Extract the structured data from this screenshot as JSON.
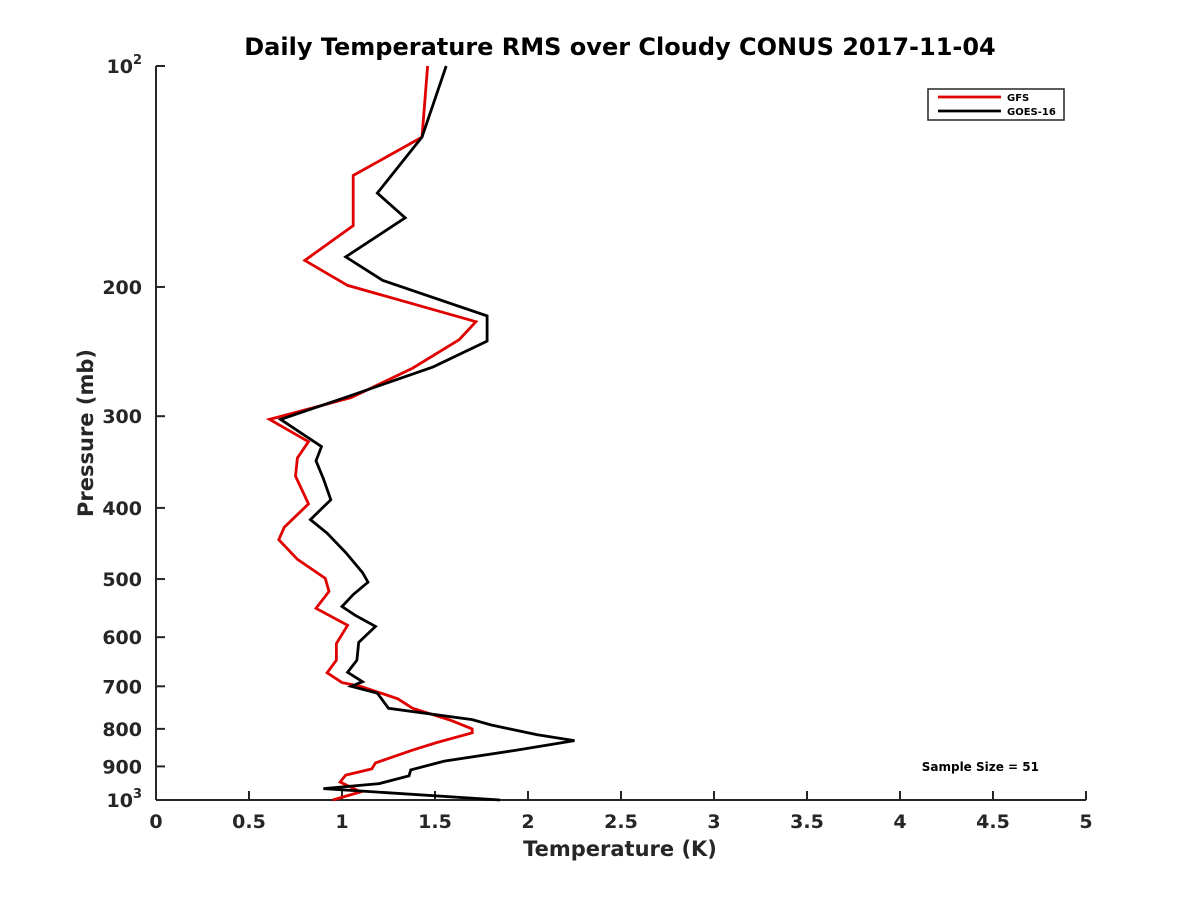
{
  "chart_data": {
    "type": "line",
    "title": "Daily Temperature RMS over Cloudy CONUS 2017-11-04",
    "xlabel": "Temperature (K)",
    "ylabel": "Pressure (mb)",
    "xlim": [
      0,
      5
    ],
    "ylim": [
      100,
      1000
    ],
    "y_scale": "log",
    "y_reversed": true,
    "grid": false,
    "legend_position": "top-right",
    "x_ticks": [
      "0",
      "0.5",
      "1",
      "1.5",
      "2",
      "2.5",
      "3",
      "3.5",
      "4",
      "4.5",
      "5"
    ],
    "x_tick_values": [
      0,
      0.5,
      1,
      1.5,
      2,
      2.5,
      3,
      3.5,
      4,
      4.5,
      5
    ],
    "y_ticks": [
      {
        "value": 100,
        "base": "10",
        "exp": "2",
        "label": ""
      },
      {
        "value": 200,
        "label": "200"
      },
      {
        "value": 300,
        "label": "300"
      },
      {
        "value": 400,
        "label": "400"
      },
      {
        "value": 500,
        "label": "500"
      },
      {
        "value": 600,
        "label": "600"
      },
      {
        "value": 700,
        "label": "700"
      },
      {
        "value": 800,
        "label": "800"
      },
      {
        "value": 900,
        "label": "900"
      },
      {
        "value": 1000,
        "base": "10",
        "exp": "3",
        "label": ""
      }
    ],
    "annotation": "Sample Size = 51",
    "series": [
      {
        "name": "GFS",
        "color": "#e00000",
        "points": [
          [
            1.46,
            100
          ],
          [
            1.43,
            125
          ],
          [
            1.06,
            141
          ],
          [
            1.06,
            165
          ],
          [
            0.8,
            184
          ],
          [
            1.03,
            199
          ],
          [
            1.72,
            223
          ],
          [
            1.63,
            236
          ],
          [
            1.38,
            258
          ],
          [
            1.05,
            283
          ],
          [
            0.61,
            303
          ],
          [
            0.82,
            325
          ],
          [
            0.76,
            342
          ],
          [
            0.75,
            362
          ],
          [
            0.82,
            395
          ],
          [
            0.69,
            425
          ],
          [
            0.66,
            442
          ],
          [
            0.76,
            470
          ],
          [
            0.91,
            499
          ],
          [
            0.93,
            520
          ],
          [
            0.86,
            548
          ],
          [
            1.03,
            578
          ],
          [
            0.97,
            612
          ],
          [
            0.97,
            645
          ],
          [
            0.92,
            671
          ],
          [
            1.0,
            692
          ],
          [
            1.1,
            700
          ],
          [
            1.3,
            728
          ],
          [
            1.38,
            750
          ],
          [
            1.58,
            778
          ],
          [
            1.7,
            800
          ],
          [
            1.7,
            810
          ],
          [
            1.51,
            835
          ],
          [
            1.38,
            855
          ],
          [
            1.18,
            890
          ],
          [
            1.16,
            907
          ],
          [
            1.02,
            925
          ],
          [
            0.99,
            945
          ],
          [
            1.1,
            975
          ],
          [
            0.95,
            1000
          ]
        ]
      },
      {
        "name": "GOES-16",
        "color": "#000000",
        "points": [
          [
            1.56,
            100
          ],
          [
            1.43,
            125
          ],
          [
            1.19,
            149
          ],
          [
            1.34,
            161
          ],
          [
            1.02,
            182
          ],
          [
            1.22,
            196
          ],
          [
            1.78,
            219
          ],
          [
            1.78,
            237
          ],
          [
            1.49,
            257
          ],
          [
            1.05,
            281
          ],
          [
            0.67,
            303
          ],
          [
            0.89,
            330
          ],
          [
            0.86,
            345
          ],
          [
            0.9,
            365
          ],
          [
            0.94,
            390
          ],
          [
            0.83,
            415
          ],
          [
            0.92,
            433
          ],
          [
            1.02,
            460
          ],
          [
            1.11,
            490
          ],
          [
            1.14,
            505
          ],
          [
            1.06,
            525
          ],
          [
            1.0,
            545
          ],
          [
            1.07,
            560
          ],
          [
            1.18,
            580
          ],
          [
            1.09,
            610
          ],
          [
            1.08,
            645
          ],
          [
            1.03,
            670
          ],
          [
            1.11,
            690
          ],
          [
            1.05,
            700
          ],
          [
            1.19,
            715
          ],
          [
            1.25,
            750
          ],
          [
            1.7,
            777
          ],
          [
            1.8,
            790
          ],
          [
            2.05,
            815
          ],
          [
            2.25,
            830
          ],
          [
            1.94,
            855
          ],
          [
            1.55,
            885
          ],
          [
            1.37,
            910
          ],
          [
            1.36,
            927
          ],
          [
            1.2,
            950
          ],
          [
            0.9,
            965
          ],
          [
            1.85,
            1000
          ]
        ]
      }
    ]
  }
}
